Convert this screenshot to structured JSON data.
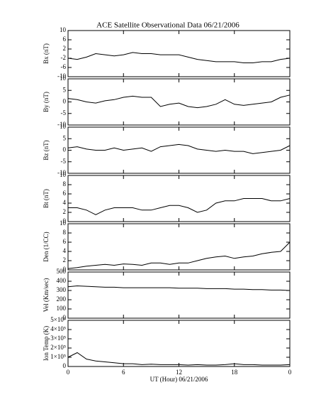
{
  "chart_data": [
    {
      "type": "line",
      "title": "ACE Satellite Observational Data   06/21/2006",
      "y_label": "Bx (nT)",
      "x": [
        0,
        1,
        2,
        3,
        4,
        5,
        6,
        7,
        8,
        9,
        10,
        11,
        12,
        13,
        14,
        15,
        16,
        17,
        18,
        19,
        20,
        21,
        22,
        23,
        24
      ],
      "series": [
        {
          "color": "#000000",
          "values": [
            -2,
            -2.5,
            -1.5,
            0,
            -0.5,
            -1,
            -0.5,
            0.5,
            0,
            0,
            -0.5,
            -0.5,
            -0.5,
            -1.5,
            -2.5,
            -3,
            -3.5,
            -3.5,
            -3.5,
            -4,
            -4,
            -3.5,
            -3.5,
            -2.5,
            -2
          ]
        }
      ],
      "ylim": [
        -10,
        10
      ],
      "yticks": [
        -10,
        -6,
        -2,
        2,
        6,
        10
      ]
    },
    {
      "type": "line",
      "y_label": "By (nT)",
      "x": [
        0,
        1,
        2,
        3,
        4,
        5,
        6,
        7,
        8,
        9,
        10,
        11,
        12,
        13,
        14,
        15,
        16,
        17,
        18,
        19,
        20,
        21,
        22,
        23,
        24
      ],
      "series": [
        {
          "color": "#000000",
          "values": [
            1.5,
            1,
            0,
            -0.5,
            0.5,
            1,
            2,
            2.5,
            2,
            2,
            -2,
            -1,
            -0.5,
            -2,
            -2.5,
            -2,
            -1,
            1,
            -1,
            -1.5,
            -1,
            -0.5,
            0,
            2,
            3
          ]
        }
      ],
      "ylim": [
        -10,
        10
      ],
      "yticks": [
        -10,
        -5,
        0,
        5,
        10
      ]
    },
    {
      "type": "line",
      "y_label": "Bz (nT)",
      "x": [
        0,
        1,
        2,
        3,
        4,
        5,
        6,
        7,
        8,
        9,
        10,
        11,
        12,
        13,
        14,
        15,
        16,
        17,
        18,
        19,
        20,
        21,
        22,
        23,
        24
      ],
      "series": [
        {
          "color": "#000000",
          "values": [
            1,
            1.5,
            0.5,
            0,
            0,
            1,
            0,
            0.5,
            1,
            -0.5,
            1.5,
            2,
            2.5,
            2,
            0.5,
            0,
            -0.5,
            0,
            -0.5,
            -0.5,
            -1.5,
            -1,
            -0.5,
            0,
            2
          ]
        }
      ],
      "ylim": [
        -10,
        10
      ],
      "yticks": [
        -10,
        -5,
        0,
        5,
        10
      ]
    },
    {
      "type": "line",
      "y_label": "Bt (nT)",
      "x": [
        0,
        1,
        2,
        3,
        4,
        5,
        6,
        7,
        8,
        9,
        10,
        11,
        12,
        13,
        14,
        15,
        16,
        17,
        18,
        19,
        20,
        21,
        22,
        23,
        24
      ],
      "series": [
        {
          "color": "#000000",
          "values": [
            3,
            3,
            2.5,
            1.5,
            2.5,
            3,
            3,
            3,
            2.5,
            2.5,
            3,
            3.5,
            3.5,
            3,
            2,
            2.5,
            4,
            4.5,
            4.5,
            5,
            5,
            5,
            4.5,
            4.5,
            5
          ]
        }
      ],
      "ylim": [
        0,
        10
      ],
      "yticks": [
        0,
        2,
        4,
        6,
        8,
        10
      ]
    },
    {
      "type": "line",
      "y_label": "Den (1/CC)",
      "x": [
        0,
        1,
        2,
        3,
        4,
        5,
        6,
        7,
        8,
        9,
        10,
        11,
        12,
        13,
        14,
        15,
        16,
        17,
        18,
        19,
        20,
        21,
        22,
        23,
        24
      ],
      "series": [
        {
          "color": "#000000",
          "values": [
            0.3,
            0.5,
            0.8,
            1,
            1.2,
            1,
            1.3,
            1.2,
            1,
            1.5,
            1.5,
            1.2,
            1.5,
            1.5,
            2,
            2.5,
            2.8,
            3,
            2.5,
            2.8,
            3,
            3.5,
            3.8,
            4,
            6
          ]
        }
      ],
      "ylim": [
        0,
        10
      ],
      "yticks": [
        0,
        2,
        4,
        6,
        8,
        10
      ]
    },
    {
      "type": "line",
      "y_label": "Vel (Km/sec)",
      "x": [
        0,
        1,
        2,
        3,
        4,
        5,
        6,
        7,
        8,
        9,
        10,
        11,
        12,
        13,
        14,
        15,
        16,
        17,
        18,
        19,
        20,
        21,
        22,
        23,
        24
      ],
      "series": [
        {
          "color": "#000000",
          "values": [
            340,
            350,
            345,
            340,
            335,
            335,
            330,
            330,
            330,
            330,
            330,
            330,
            325,
            325,
            325,
            320,
            320,
            320,
            315,
            315,
            310,
            310,
            305,
            305,
            300
          ]
        }
      ],
      "ylim": [
        0,
        500
      ],
      "yticks": [
        0,
        100,
        200,
        300,
        400,
        500
      ]
    },
    {
      "type": "line",
      "y_label": "Ion Temp (K)",
      "x_label": "UT (Hour)   06/21/2006",
      "x": [
        0,
        1,
        2,
        3,
        4,
        5,
        6,
        7,
        8,
        9,
        10,
        11,
        12,
        13,
        14,
        15,
        16,
        17,
        18,
        19,
        20,
        21,
        22,
        23,
        24
      ],
      "series": [
        {
          "color": "#000000",
          "values": [
            100000,
            150000,
            80000,
            60000,
            50000,
            40000,
            30000,
            30000,
            20000,
            25000,
            20000,
            20000,
            20000,
            15000,
            20000,
            15000,
            15000,
            20000,
            30000,
            20000,
            20000,
            15000,
            15000,
            15000,
            20000
          ]
        }
      ],
      "ylim": [
        0,
        500000
      ],
      "yticks": [
        0,
        {
          "value": 100000,
          "label": "1×10⁵"
        },
        {
          "value": 200000,
          "label": "2×10⁵"
        },
        {
          "value": 300000,
          "label": "3×10⁵"
        },
        {
          "value": 400000,
          "label": "4×10⁵"
        },
        {
          "value": 500000,
          "label": "5×10⁵"
        }
      ],
      "xlim": [
        0,
        24
      ],
      "xticks": [
        0,
        6,
        12,
        18,
        {
          "value": 24,
          "label": "0"
        }
      ]
    }
  ]
}
